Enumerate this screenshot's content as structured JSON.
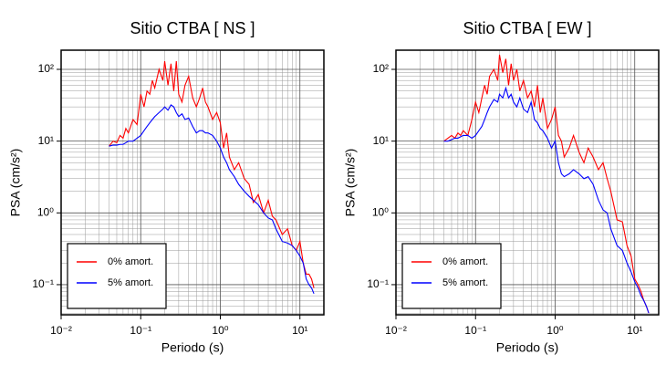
{
  "chart_data": [
    {
      "type": "line",
      "title": "Sitio CTBA [ NS ]",
      "xlabel": "Periodo (s)",
      "ylabel": "PSA (cm/s²)",
      "xscale": "log",
      "yscale": "log",
      "grid": true,
      "minor_grid": true,
      "legend": "lower left",
      "xlim": [
        0.01,
        20
      ],
      "ylim": [
        0.038,
        185
      ],
      "xticks": [
        {
          "value": 0.01,
          "label": "10⁻²"
        },
        {
          "value": 0.1,
          "label": "10⁻¹"
        },
        {
          "value": 1,
          "label": "10⁰"
        },
        {
          "value": 10,
          "label": "10¹"
        }
      ],
      "yticks": [
        {
          "value": 0.1,
          "label": "10⁻¹"
        },
        {
          "value": 1,
          "label": "10⁰"
        },
        {
          "value": 10,
          "label": "10¹"
        },
        {
          "value": 100,
          "label": "10²"
        }
      ],
      "x": [
        0.04,
        0.045,
        0.05,
        0.055,
        0.06,
        0.065,
        0.07,
        0.08,
        0.09,
        0.1,
        0.11,
        0.12,
        0.13,
        0.14,
        0.15,
        0.17,
        0.19,
        0.2,
        0.22,
        0.24,
        0.26,
        0.28,
        0.3,
        0.33,
        0.36,
        0.4,
        0.45,
        0.5,
        0.55,
        0.6,
        0.65,
        0.7,
        0.8,
        0.9,
        1.0,
        1.1,
        1.2,
        1.3,
        1.5,
        1.7,
        2.0,
        2.3,
        2.6,
        3.0,
        3.5,
        4.0,
        4.5,
        5.0,
        6.0,
        7.0,
        8.0,
        9.0,
        10,
        11,
        12,
        13,
        14,
        15
      ],
      "series": [
        {
          "name": "0% amort.",
          "color": "#ff0000",
          "values": [
            8.5,
            10,
            9.5,
            12,
            11,
            15,
            13,
            20,
            17,
            45,
            30,
            50,
            45,
            70,
            55,
            100,
            70,
            130,
            60,
            120,
            50,
            130,
            45,
            35,
            60,
            80,
            40,
            30,
            40,
            55,
            35,
            30,
            20,
            25,
            18,
            8,
            13,
            6,
            4,
            5,
            3,
            2.5,
            1.4,
            1.8,
            1.0,
            1.5,
            0.9,
            0.8,
            0.5,
            0.6,
            0.35,
            0.3,
            0.4,
            0.2,
            0.14,
            0.14,
            0.12,
            0.09
          ]
        },
        {
          "name": "5% amort.",
          "color": "#0000ff",
          "values": [
            8.5,
            8.8,
            8.8,
            9,
            9,
            9.5,
            10,
            10,
            11,
            12,
            14,
            16,
            18,
            20,
            22,
            25,
            28,
            30,
            27,
            32,
            30,
            25,
            22,
            24,
            20,
            21,
            16,
            13,
            14,
            14,
            13,
            13,
            12,
            10,
            8,
            6,
            5,
            4,
            3.2,
            2.5,
            2,
            1.7,
            1.5,
            1.3,
            1.0,
            0.85,
            0.8,
            0.6,
            0.4,
            0.38,
            0.35,
            0.3,
            0.25,
            0.2,
            0.12,
            0.1,
            0.09,
            0.075
          ]
        }
      ]
    },
    {
      "type": "line",
      "title": "Sitio CTBA [ EW ]",
      "xlabel": "Periodo (s)",
      "ylabel": "PSA (cm/s²)",
      "xscale": "log",
      "yscale": "log",
      "grid": true,
      "minor_grid": true,
      "legend": "lower left",
      "xlim": [
        0.01,
        20
      ],
      "ylim": [
        0.038,
        185
      ],
      "xticks": [
        {
          "value": 0.01,
          "label": "10⁻²"
        },
        {
          "value": 0.1,
          "label": "10⁻¹"
        },
        {
          "value": 1,
          "label": "10⁰"
        },
        {
          "value": 10,
          "label": "10¹"
        }
      ],
      "yticks": [
        {
          "value": 0.1,
          "label": "10⁻¹"
        },
        {
          "value": 1,
          "label": "10⁰"
        },
        {
          "value": 10,
          "label": "10¹"
        },
        {
          "value": 100,
          "label": "10²"
        }
      ],
      "x": [
        0.04,
        0.045,
        0.05,
        0.055,
        0.06,
        0.065,
        0.07,
        0.08,
        0.09,
        0.1,
        0.11,
        0.12,
        0.13,
        0.14,
        0.15,
        0.17,
        0.19,
        0.2,
        0.22,
        0.24,
        0.26,
        0.28,
        0.3,
        0.33,
        0.36,
        0.4,
        0.45,
        0.5,
        0.55,
        0.6,
        0.65,
        0.7,
        0.8,
        0.9,
        1.0,
        1.1,
        1.2,
        1.3,
        1.5,
        1.7,
        2.0,
        2.3,
        2.6,
        3.0,
        3.5,
        4.0,
        4.5,
        5.0,
        6.0,
        7.0,
        8.0,
        9.0,
        10,
        11,
        12,
        13,
        14,
        15
      ],
      "series": [
        {
          "name": "0% amort.",
          "color": "#ff0000",
          "values": [
            10,
            11,
            12,
            11,
            13,
            12,
            14,
            12,
            20,
            35,
            25,
            40,
            60,
            45,
            80,
            100,
            70,
            160,
            90,
            140,
            60,
            120,
            70,
            100,
            50,
            70,
            40,
            50,
            30,
            60,
            25,
            40,
            15,
            20,
            30,
            12,
            10,
            6,
            8,
            12,
            7,
            5,
            8,
            6,
            4,
            5,
            3,
            2,
            0.8,
            0.75,
            0.35,
            0.25,
            0.12,
            0.1,
            0.08,
            0.06,
            0.05,
            0.04
          ]
        },
        {
          "name": "5% amort.",
          "color": "#0000ff",
          "values": [
            10,
            10,
            10.5,
            11,
            11,
            11.5,
            12,
            12,
            11,
            12,
            14,
            16,
            20,
            25,
            30,
            38,
            35,
            45,
            40,
            55,
            40,
            45,
            35,
            30,
            40,
            28,
            25,
            35,
            20,
            18,
            15,
            14,
            11,
            8,
            10,
            5,
            3.5,
            3.2,
            3.5,
            4,
            3.5,
            3,
            3.2,
            2.5,
            1.5,
            1.1,
            1.0,
            0.6,
            0.35,
            0.3,
            0.2,
            0.15,
            0.11,
            0.09,
            0.07,
            0.06,
            0.05,
            0.04
          ]
        }
      ]
    }
  ]
}
